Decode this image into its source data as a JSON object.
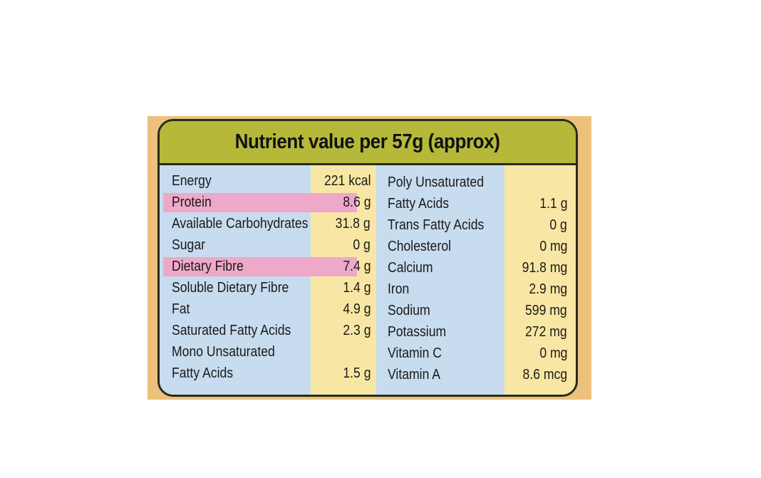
{
  "title": "Nutrient value per 57g (approx)",
  "left_rows": [
    {
      "name": "Energy",
      "value": "221 kcal",
      "highlighted": false
    },
    {
      "name": "Protein",
      "value": "8.6 g",
      "highlighted": true
    },
    {
      "name": "Available Carbohydrates",
      "value": "31.8 g",
      "highlighted": false
    },
    {
      "name": "Sugar",
      "value": "0 g",
      "highlighted": false
    },
    {
      "name": "Dietary Fibre",
      "value": "7.4 g",
      "highlighted": true
    },
    {
      "name": "Soluble Dietary Fibre",
      "value": "1.4 g",
      "highlighted": false
    },
    {
      "name": "Fat",
      "value": "4.9 g",
      "highlighted": false
    },
    {
      "name": "Saturated Fatty Acids",
      "value": "2.3 g",
      "highlighted": false
    },
    {
      "name": "Mono Unsaturated",
      "value": "",
      "highlighted": false
    },
    {
      "name": "Fatty Acids",
      "value": "1.5 g",
      "highlighted": false
    }
  ],
  "right_rows": [
    {
      "name": "Poly Unsaturated",
      "value": ""
    },
    {
      "name": "Fatty Acids",
      "value": "1.1 g"
    },
    {
      "name": "Trans Fatty Acids",
      "value": "0 g"
    },
    {
      "name": "Cholesterol",
      "value": "0 mg"
    },
    {
      "name": "Calcium",
      "value": "91.8 mg"
    },
    {
      "name": "Iron",
      "value": "2.9 mg"
    },
    {
      "name": "Sodium",
      "value": "599 mg"
    },
    {
      "name": "Potassium",
      "value": "272 mg"
    },
    {
      "name": "Vitamin C",
      "value": "0 mg"
    },
    {
      "name": "Vitamin A",
      "value": "8.6 mcg"
    }
  ],
  "colors": {
    "header": "#b6b83a",
    "name_column": "#c7dcee",
    "value_column": "#f8e7a4",
    "highlight": "#eea8c9",
    "border": "#262a1d",
    "packaging": "#ecc17b"
  }
}
